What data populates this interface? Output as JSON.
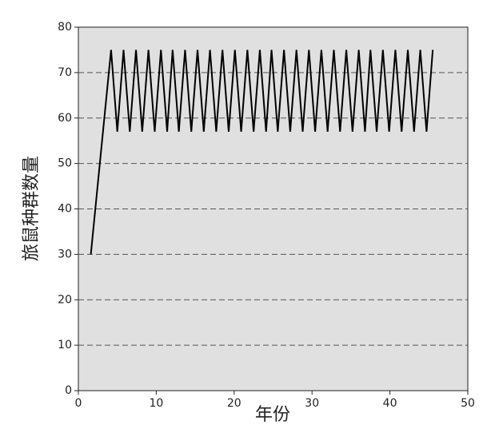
{
  "chart_data": {
    "type": "line",
    "xlabel": "年份",
    "ylabel": "旅鼠种群数量",
    "x": [
      1.6,
      4.2,
      5.0,
      5.8,
      6.6,
      7.4,
      8.2,
      9.0,
      9.8,
      10.6,
      11.4,
      12.1,
      12.9,
      13.7,
      14.5,
      15.3,
      16.1,
      16.9,
      17.7,
      18.5,
      19.3,
      20.1,
      20.9,
      21.7,
      22.5,
      23.3,
      24.1,
      24.8,
      25.6,
      26.4,
      27.2,
      28.0,
      28.8,
      29.6,
      30.4,
      31.2,
      32.0,
      32.8,
      33.6,
      34.4,
      35.2,
      36.0,
      36.8,
      37.5,
      38.3,
      39.1,
      39.9,
      40.7,
      41.5,
      42.3,
      43.1,
      43.9,
      44.7,
      45.5
    ],
    "series": [
      {
        "color": "#000000",
        "values": [
          30,
          75,
          57,
          75,
          57,
          75,
          57,
          75,
          57,
          75,
          57,
          75,
          57,
          75,
          57,
          75,
          57,
          75,
          57,
          75,
          57,
          75,
          57,
          75,
          57,
          75,
          57,
          75,
          57,
          75,
          57,
          75,
          57,
          75,
          57,
          75,
          57,
          75,
          57,
          75,
          57,
          75,
          57,
          75,
          57,
          75,
          57,
          75,
          57,
          75,
          57,
          75,
          57,
          75
        ]
      }
    ],
    "xlim": [
      0,
      50
    ],
    "xticks": [
      0,
      10,
      20,
      30,
      40,
      50
    ],
    "ylim": [
      0,
      80
    ],
    "yticks": [
      0,
      10,
      20,
      30,
      40,
      50,
      60,
      70,
      80
    ],
    "grid": true
  }
}
